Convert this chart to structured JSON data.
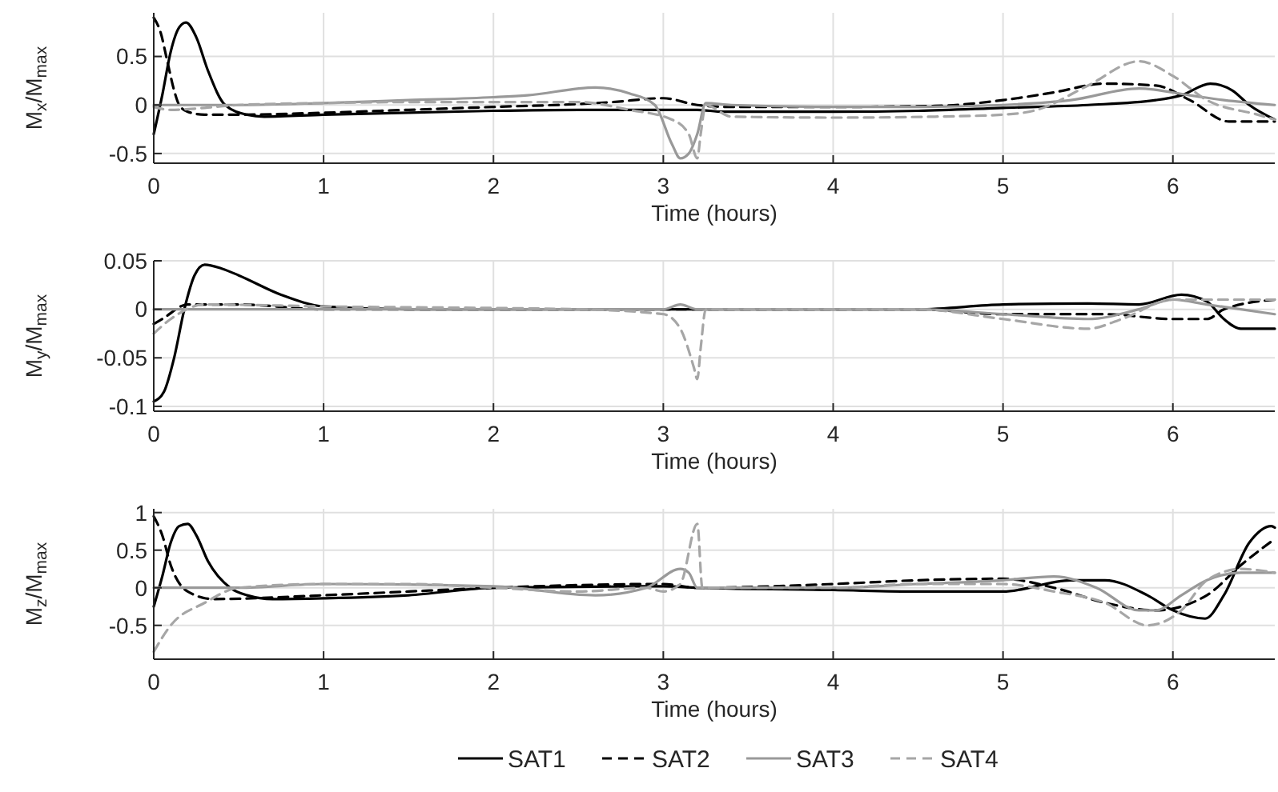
{
  "chart_data": [
    {
      "type": "line",
      "xlabel": "Time (hours)",
      "ylabel": "M$_{x}$/M$_{max}$",
      "xlim": [
        0,
        6.6
      ],
      "ylim": [
        -0.6,
        0.95
      ],
      "xticks": [
        0,
        1,
        2,
        3,
        4,
        5,
        6
      ],
      "yticks": [
        -0.5,
        0,
        0.5
      ],
      "grid": true,
      "legend": false,
      "series": [
        {
          "color": "#000000",
          "line_style": "solid",
          "x": [
            0,
            0.05,
            0.1,
            0.15,
            0.19,
            0.25,
            0.32,
            0.42,
            0.55,
            0.65,
            1.0,
            1.5,
            2.0,
            2.5,
            3.0,
            3.2,
            3.35,
            4.0,
            4.5,
            5.0,
            5.5,
            5.9,
            6.05,
            6.22,
            6.35,
            6.45,
            6.6
          ],
          "values": [
            -0.3,
            0.1,
            0.55,
            0.8,
            0.85,
            0.7,
            0.35,
            0.0,
            -0.1,
            -0.12,
            -0.1,
            -0.08,
            -0.06,
            -0.05,
            -0.05,
            -0.05,
            -0.07,
            -0.07,
            -0.06,
            -0.03,
            0.0,
            0.05,
            0.1,
            0.22,
            0.15,
            0.0,
            -0.15
          ]
        },
        {
          "color": "#000000",
          "line_style": "dashed",
          "x": [
            0,
            0.04,
            0.08,
            0.12,
            0.15,
            0.2,
            0.3,
            0.5,
            1.0,
            1.5,
            2.0,
            2.5,
            2.7,
            3.0,
            3.2,
            3.4,
            4.0,
            4.6,
            5.0,
            5.3,
            5.6,
            5.9,
            6.1,
            6.33,
            6.6
          ],
          "values": [
            0.9,
            0.75,
            0.45,
            0.15,
            0.0,
            -0.07,
            -0.1,
            -0.1,
            -0.08,
            -0.05,
            -0.02,
            0.01,
            0.03,
            0.07,
            0.0,
            -0.02,
            -0.02,
            -0.01,
            0.05,
            0.13,
            0.22,
            0.2,
            0.05,
            -0.17,
            -0.17
          ]
        },
        {
          "color": "#999999",
          "line_style": "solid",
          "x": [
            0,
            0.5,
            1.0,
            1.5,
            2.0,
            2.2,
            2.6,
            2.8,
            2.95,
            3.05,
            3.1,
            3.15,
            3.2,
            3.25,
            3.4,
            4.0,
            4.5,
            5.0,
            5.4,
            5.8,
            6.1,
            6.3,
            6.6
          ],
          "values": [
            0.0,
            0.0,
            0.02,
            0.05,
            0.08,
            0.1,
            0.18,
            0.12,
            0.0,
            -0.4,
            -0.55,
            -0.5,
            -0.3,
            0.02,
            0.0,
            -0.02,
            -0.02,
            0.0,
            0.05,
            0.17,
            0.1,
            0.05,
            0.0
          ]
        },
        {
          "color": "#a6a6a6",
          "line_style": "dashed",
          "x": [
            0,
            0.1,
            0.3,
            0.5,
            1.0,
            1.5,
            2.0,
            2.5,
            2.8,
            3.05,
            3.15,
            3.2,
            3.22,
            3.25,
            3.4,
            4.0,
            4.6,
            5.0,
            5.2,
            5.5,
            5.8,
            6.0,
            6.2,
            6.5,
            6.6
          ],
          "values": [
            -0.02,
            -0.05,
            -0.03,
            0.0,
            0.02,
            0.03,
            0.03,
            0.03,
            -0.05,
            -0.15,
            -0.3,
            -0.55,
            -0.3,
            0.0,
            -0.12,
            -0.13,
            -0.12,
            -0.1,
            -0.05,
            0.2,
            0.45,
            0.3,
            0.05,
            -0.1,
            -0.15
          ]
        }
      ]
    },
    {
      "type": "line",
      "xlabel": "Time (hours)",
      "ylabel": "M$_{y}$/M$_{max}$",
      "xlim": [
        0,
        6.6
      ],
      "ylim": [
        -0.105,
        0.05
      ],
      "xticks": [
        0,
        1,
        2,
        3,
        4,
        5,
        6
      ],
      "yticks": [
        -0.1,
        -0.05,
        0,
        0.05
      ],
      "grid": true,
      "legend": false,
      "series": [
        {
          "color": "#000000",
          "line_style": "solid",
          "x": [
            0,
            0.06,
            0.12,
            0.18,
            0.24,
            0.3,
            0.4,
            0.5,
            0.75,
            1.0,
            1.5,
            2.0,
            3.0,
            4.5,
            5.0,
            5.5,
            5.8,
            6.05,
            6.2,
            6.3,
            6.4,
            6.6
          ],
          "values": [
            -0.095,
            -0.085,
            -0.05,
            0.0,
            0.035,
            0.046,
            0.042,
            0.035,
            0.015,
            0.003,
            0.0,
            0.0,
            0.0,
            0.0,
            0.005,
            0.006,
            0.005,
            0.015,
            0.008,
            -0.01,
            -0.02,
            -0.02
          ]
        },
        {
          "color": "#000000",
          "line_style": "dashed",
          "x": [
            0,
            0.05,
            0.2,
            0.5,
            1.0,
            2.0,
            3.0,
            4.5,
            5.0,
            5.6,
            6.0,
            6.2,
            6.3,
            6.6
          ],
          "values": [
            -0.015,
            -0.01,
            0.005,
            0.005,
            0.0,
            0.0,
            0.0,
            0.0,
            -0.005,
            -0.005,
            -0.01,
            -0.01,
            0.0,
            0.01
          ]
        },
        {
          "color": "#999999",
          "line_style": "solid",
          "x": [
            0,
            1.0,
            2.0,
            3.0,
            3.1,
            3.2,
            4.0,
            4.5,
            5.0,
            5.5,
            5.8,
            6.0,
            6.2,
            6.6
          ],
          "values": [
            0.0,
            0.0,
            0.0,
            0.0,
            0.005,
            0.0,
            0.0,
            0.0,
            -0.005,
            -0.01,
            0.0,
            0.01,
            0.005,
            -0.005
          ]
        },
        {
          "color": "#a6a6a6",
          "line_style": "dashed",
          "x": [
            0,
            0.1,
            0.3,
            1.0,
            2.5,
            3.0,
            3.1,
            3.18,
            3.2,
            3.22,
            3.25,
            4.5,
            5.0,
            5.5,
            5.7,
            6.0,
            6.5,
            6.6
          ],
          "values": [
            -0.025,
            -0.01,
            0.005,
            0.003,
            0.0,
            -0.005,
            -0.02,
            -0.06,
            -0.072,
            -0.04,
            0.0,
            0.0,
            -0.01,
            -0.02,
            -0.01,
            0.01,
            0.01,
            0.01
          ]
        }
      ]
    },
    {
      "type": "line",
      "xlabel": "Time (hours)",
      "ylabel": "M$_{z}$/M$_{max}$",
      "xlim": [
        0,
        6.6
      ],
      "ylim": [
        -0.95,
        1.05
      ],
      "xticks": [
        0,
        1,
        2,
        3,
        4,
        5,
        6
      ],
      "yticks": [
        -0.5,
        0,
        0.5,
        1
      ],
      "grid": true,
      "legend": "bottom",
      "series": [
        {
          "name": "SAT1",
          "color": "#000000",
          "line_style": "solid",
          "x": [
            0,
            0.05,
            0.1,
            0.15,
            0.2,
            0.25,
            0.32,
            0.45,
            0.55,
            0.7,
            1.0,
            1.5,
            2.0,
            3.0,
            3.2,
            4.0,
            4.5,
            5.0,
            5.4,
            5.6,
            5.85,
            6.0,
            6.19,
            6.3,
            6.45,
            6.58,
            6.6
          ],
          "values": [
            -0.25,
            0.15,
            0.6,
            0.82,
            0.85,
            0.7,
            0.35,
            0.0,
            -0.1,
            -0.15,
            -0.14,
            -0.1,
            0.0,
            0.02,
            0.0,
            -0.03,
            -0.05,
            -0.05,
            0.1,
            0.1,
            -0.1,
            -0.3,
            -0.41,
            -0.1,
            0.6,
            0.82,
            0.8
          ]
        },
        {
          "name": "SAT2",
          "color": "#000000",
          "line_style": "dashed",
          "x": [
            0,
            0.05,
            0.1,
            0.2,
            0.35,
            1.0,
            1.5,
            2.0,
            3.0,
            3.2,
            4.0,
            4.5,
            5.0,
            5.3,
            5.6,
            5.9,
            6.2,
            6.4,
            6.6
          ],
          "values": [
            0.95,
            0.7,
            0.3,
            -0.05,
            -0.15,
            -0.1,
            -0.05,
            0.0,
            0.05,
            0.0,
            0.05,
            0.1,
            0.12,
            0.0,
            -0.2,
            -0.3,
            -0.1,
            0.3,
            0.65
          ]
        },
        {
          "name": "SAT3",
          "color": "#999999",
          "line_style": "solid",
          "x": [
            0,
            0.5,
            1.0,
            2.0,
            2.6,
            2.9,
            3.1,
            3.15,
            3.2,
            4.0,
            4.5,
            5.0,
            5.3,
            5.55,
            5.8,
            5.9,
            6.05,
            6.2,
            6.4,
            6.6
          ],
          "values": [
            0.0,
            0.0,
            0.05,
            0.02,
            -0.1,
            0.0,
            0.25,
            0.2,
            0.0,
            0.0,
            0.05,
            0.1,
            0.15,
            0.0,
            -0.3,
            -0.3,
            -0.1,
            0.1,
            0.2,
            0.2
          ]
        },
        {
          "name": "SAT4",
          "color": "#a6a6a6",
          "line_style": "dashed",
          "x": [
            0,
            0.1,
            0.3,
            0.5,
            1.0,
            1.5,
            2.0,
            2.5,
            2.9,
            3.0,
            3.1,
            3.2,
            3.23,
            4.0,
            4.5,
            5.0,
            5.3,
            5.6,
            5.85,
            6.05,
            6.2,
            6.4,
            6.6
          ],
          "values": [
            -0.85,
            -0.5,
            -0.2,
            0.0,
            0.05,
            0.05,
            0.0,
            -0.05,
            0.0,
            -0.05,
            0.05,
            0.85,
            0.0,
            0.0,
            0.05,
            0.05,
            -0.05,
            -0.2,
            -0.5,
            -0.3,
            0.1,
            0.25,
            0.2
          ]
        }
      ]
    }
  ]
}
